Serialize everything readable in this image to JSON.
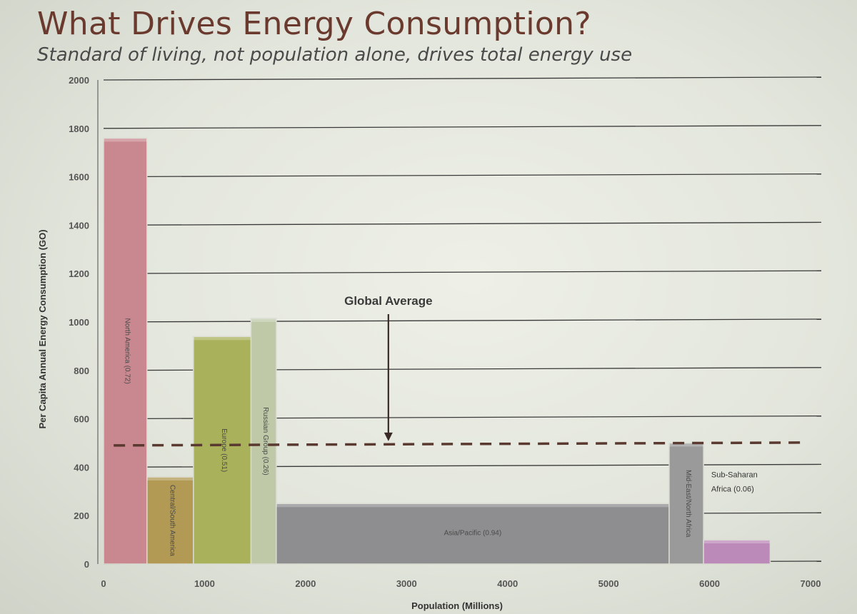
{
  "slide": {
    "title": "What Drives Energy Consumption?",
    "subtitle": "Standard of living, not population alone, drives total energy use"
  },
  "chart_data": {
    "type": "bar",
    "xlabel": "Population (Millions)",
    "ylabel": "Per Capita Annual Energy Consumption (GO)",
    "xlim": [
      0,
      7000
    ],
    "ylim": [
      0,
      2000
    ],
    "x_ticks": [
      "0",
      "1000",
      "2000",
      "3000",
      "4000",
      "5000",
      "6000",
      "7000"
    ],
    "y_ticks": [
      "0",
      "200",
      "400",
      "600",
      "800",
      "1000",
      "1200",
      "1400",
      "1600",
      "1800",
      "2000"
    ],
    "grid": true,
    "bars": [
      {
        "label": "North America (0.72)",
        "x_start": 0,
        "x_end": 430,
        "value": 1760,
        "color": "#c9878f",
        "label_orientation": "vertical"
      },
      {
        "label": "Central/South America",
        "x_start": 430,
        "x_end": 890,
        "value": 360,
        "color": "#b29a55",
        "label_orientation": "vertical"
      },
      {
        "label": "Europe (0.51)",
        "x_start": 890,
        "x_end": 1460,
        "value": 940,
        "color": "#a9b15a",
        "label_orientation": "vertical"
      },
      {
        "label": "Russian Group (0.26)",
        "x_start": 1460,
        "x_end": 1710,
        "value": 1015,
        "color": "#bfc9a8",
        "label_orientation": "vertical"
      },
      {
        "label": "Asia/Pacific (0.94)",
        "x_start": 1710,
        "x_end": 5600,
        "value": 250,
        "color": "#8e8e90",
        "label_orientation": "horizontal"
      },
      {
        "label": "Mid-East/North Africa",
        "x_start": 5600,
        "x_end": 5940,
        "value": 500,
        "color": "#9a9a9a",
        "label_orientation": "vertical"
      },
      {
        "label": "",
        "x_start": 5940,
        "x_end": 6600,
        "value": 100,
        "color": "#bc8ab8",
        "label_orientation": "none"
      }
    ],
    "global_average": {
      "value": 490,
      "label": "Global Average",
      "x_start": 100,
      "x_end": 6950,
      "arrow_x": 2820
    },
    "annotations": [
      {
        "text_lines": [
          "Sub-Saharan",
          "Africa (0.06)"
        ],
        "x": 5960,
        "y": 250
      }
    ]
  }
}
